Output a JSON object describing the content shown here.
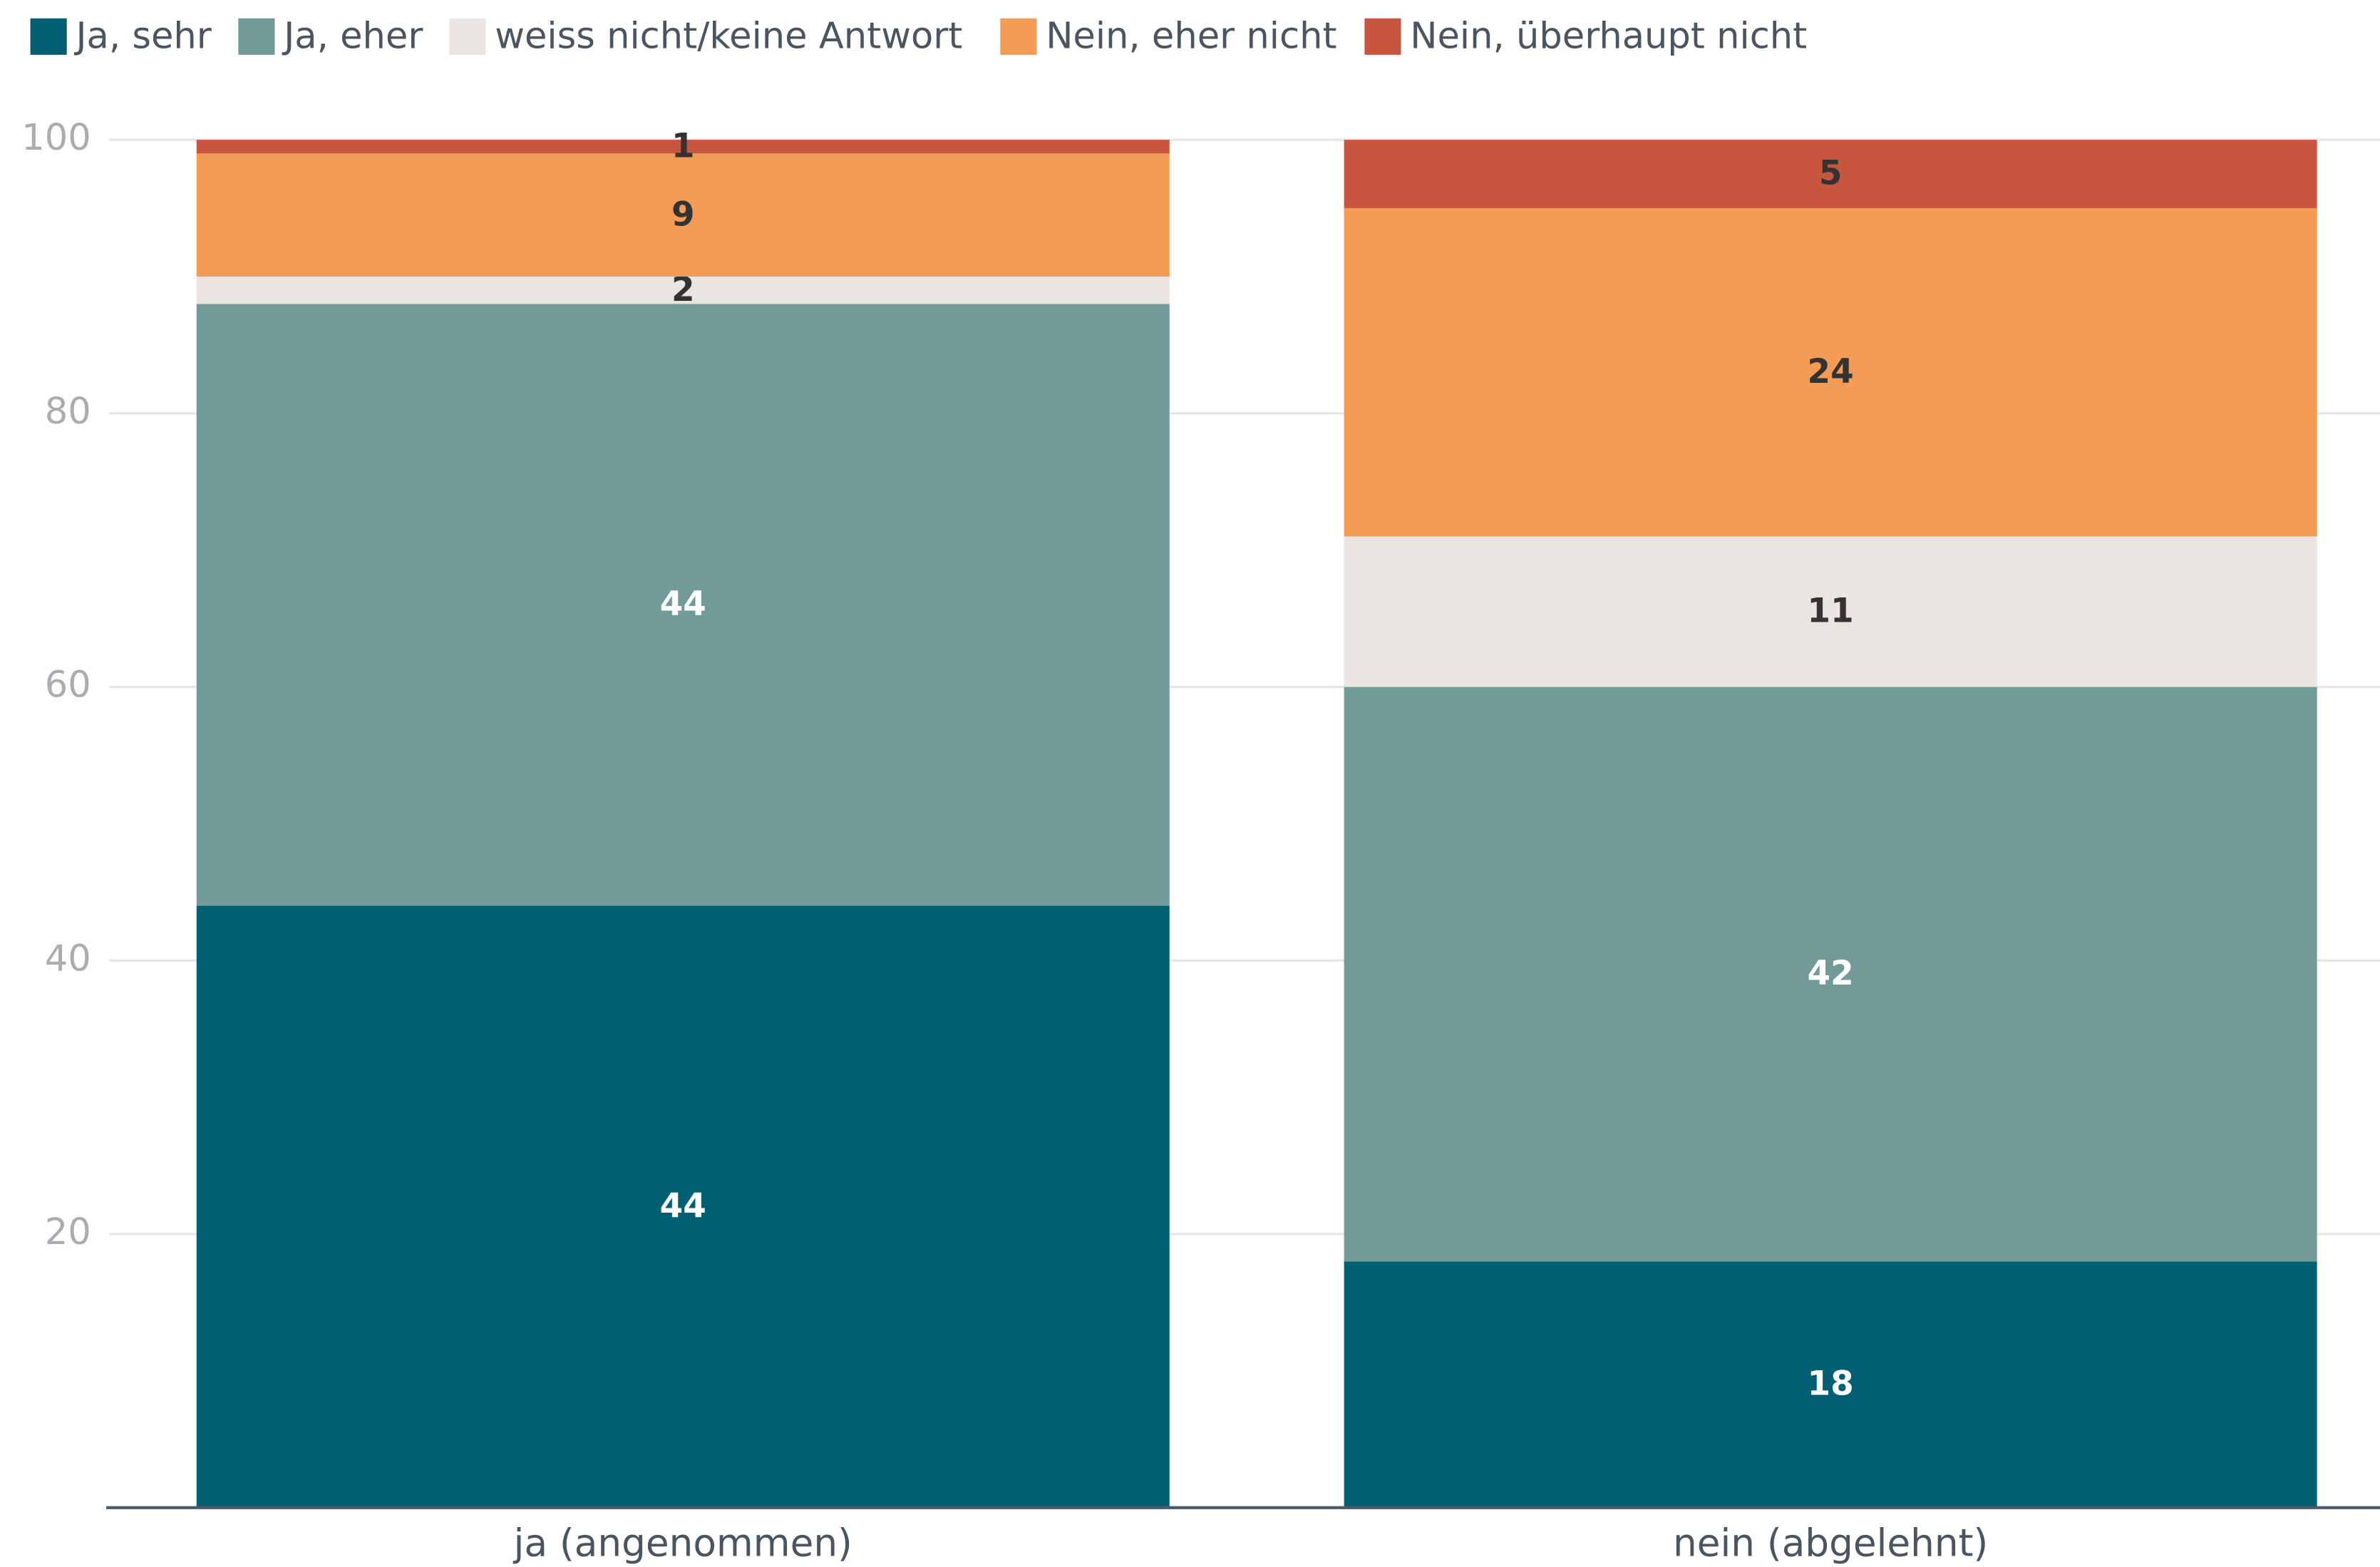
{
  "chart_data": {
    "type": "stacked_bar",
    "categories": [
      "ja (angenommen)",
      "nein (abgelehnt)"
    ],
    "series": [
      {
        "name": "Ja, sehr",
        "color": "#005f73",
        "values": [
          44,
          18
        ]
      },
      {
        "name": "Ja, eher",
        "color": "#719a98",
        "values": [
          44,
          42
        ]
      },
      {
        "name": "weiss nicht/keine Antwort",
        "color": "#ebe5e1",
        "values": [
          2,
          11
        ]
      },
      {
        "name": "Nein, eher nicht",
        "color": "#f39c55",
        "values": [
          9,
          24
        ]
      },
      {
        "name": "Nein, überhaupt nicht",
        "color": "#c8553d",
        "values": [
          1,
          5
        ]
      }
    ],
    "ylim": [
      0,
      100
    ],
    "yticks": [
      20,
      40,
      60,
      80,
      100
    ],
    "grid": true,
    "legend": "top"
  }
}
